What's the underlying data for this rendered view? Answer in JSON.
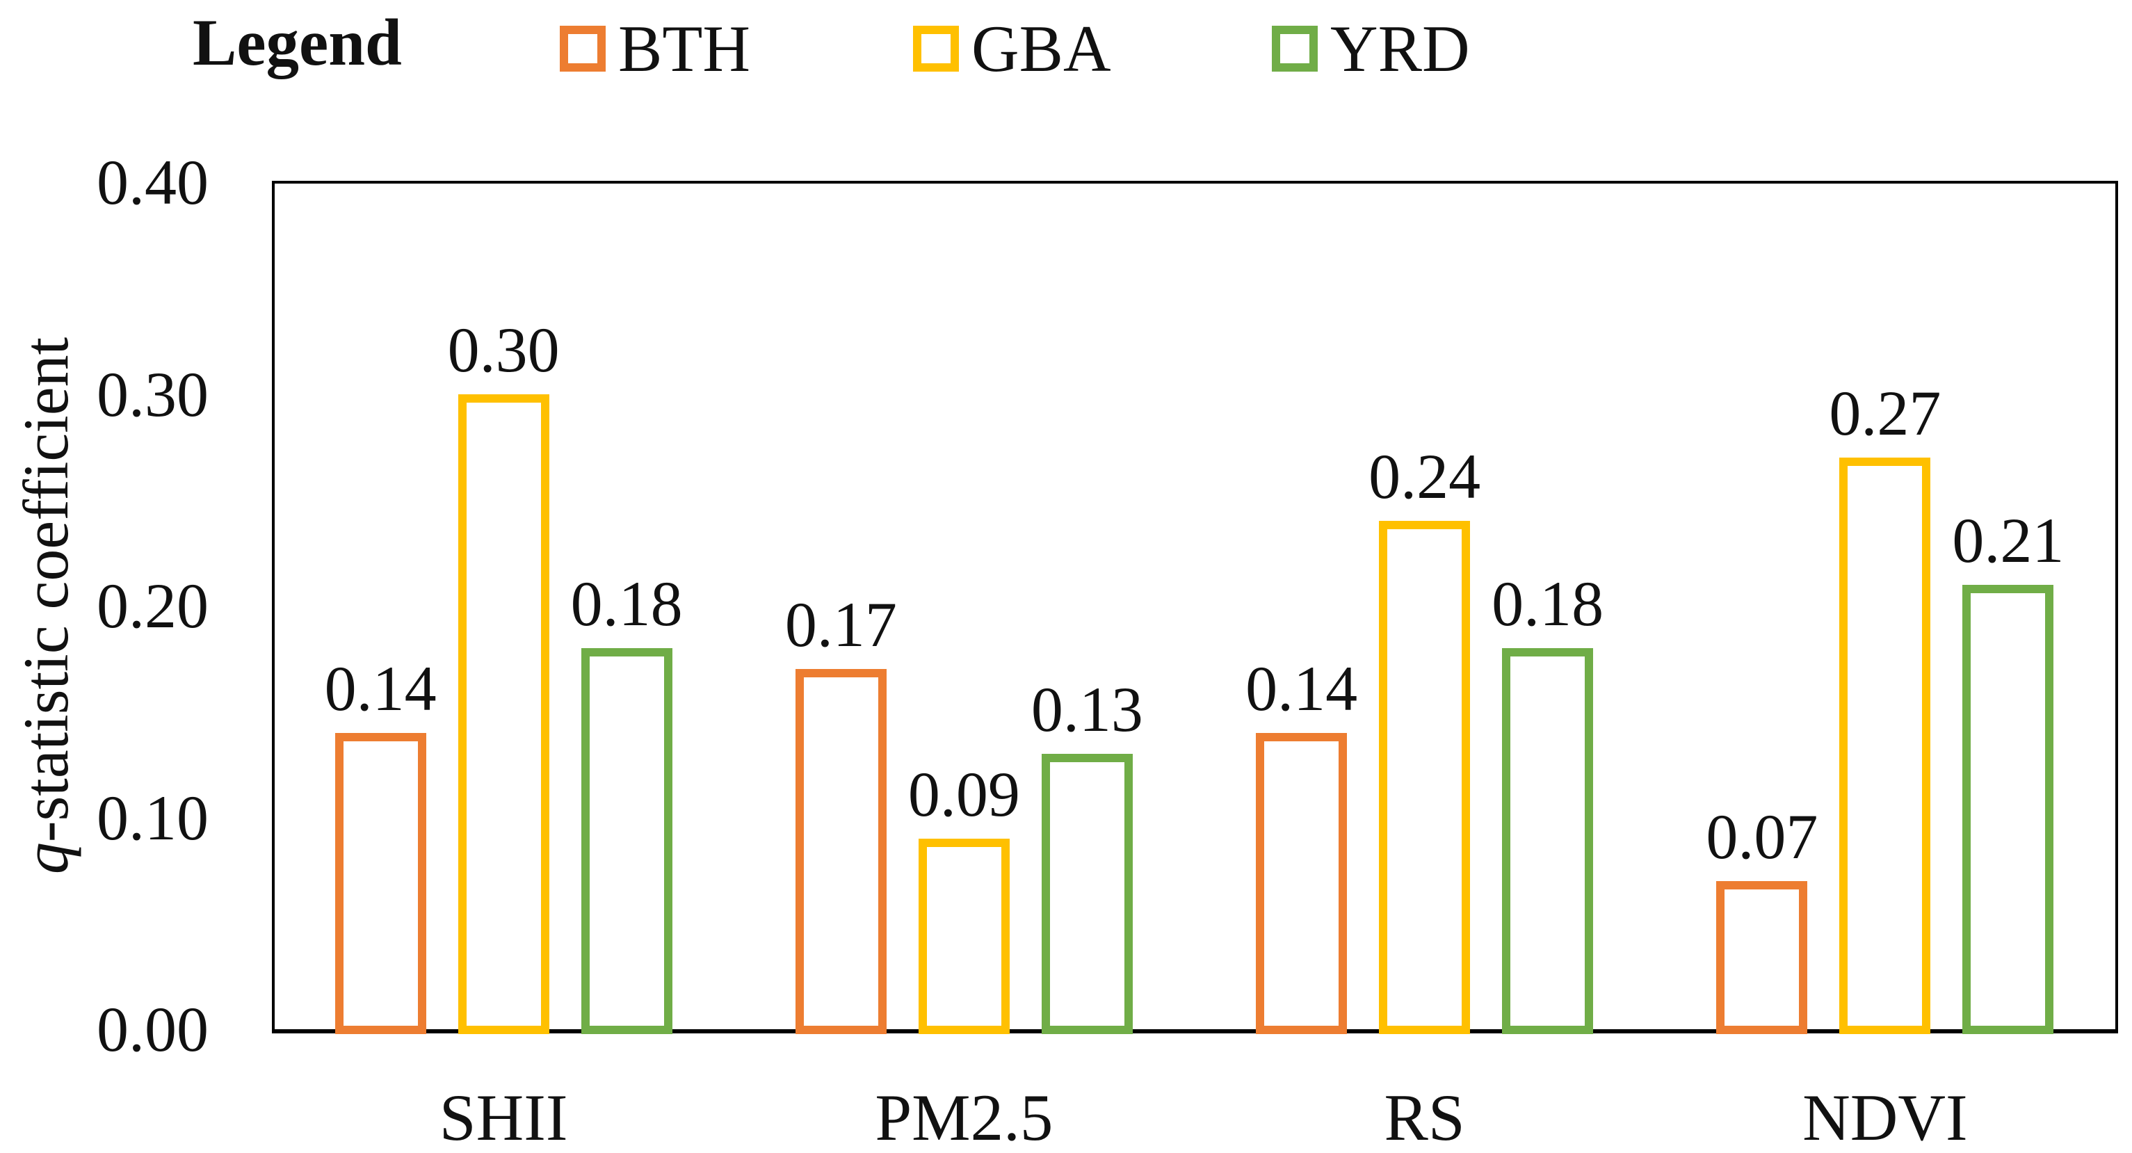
{
  "legend": {
    "title": "Legend",
    "items": [
      {
        "label": "BTH",
        "color": "#ED7D31"
      },
      {
        "label": "GBA",
        "color": "#FFC000"
      },
      {
        "label": "YRD",
        "color": "#70AD47"
      }
    ]
  },
  "axis": {
    "ylabel_italic": "q",
    "ylabel_rest": "-statistic coefficient"
  },
  "chart_data": {
    "type": "bar",
    "bar_style": "outlined-hollow",
    "categories": [
      "SHII",
      "PM2.5",
      "RS",
      "NDVI"
    ],
    "series": [
      {
        "name": "BTH",
        "color": "#ED7D31",
        "values": [
          0.14,
          0.17,
          0.14,
          0.07
        ]
      },
      {
        "name": "GBA",
        "color": "#FFC000",
        "values": [
          0.3,
          0.09,
          0.24,
          0.27
        ]
      },
      {
        "name": "YRD",
        "color": "#70AD47",
        "values": [
          0.18,
          0.13,
          0.18,
          0.21
        ]
      }
    ],
    "title": "",
    "xlabel": "",
    "ylabel": "q-statistic coefficient",
    "ylim": [
      0.0,
      0.4
    ],
    "yticks": [
      0.0,
      0.1,
      0.2,
      0.3,
      0.4
    ],
    "ytick_decimals": 2,
    "value_labels": true,
    "value_label_decimals": 2,
    "grid": false,
    "legend_position": "top"
  }
}
